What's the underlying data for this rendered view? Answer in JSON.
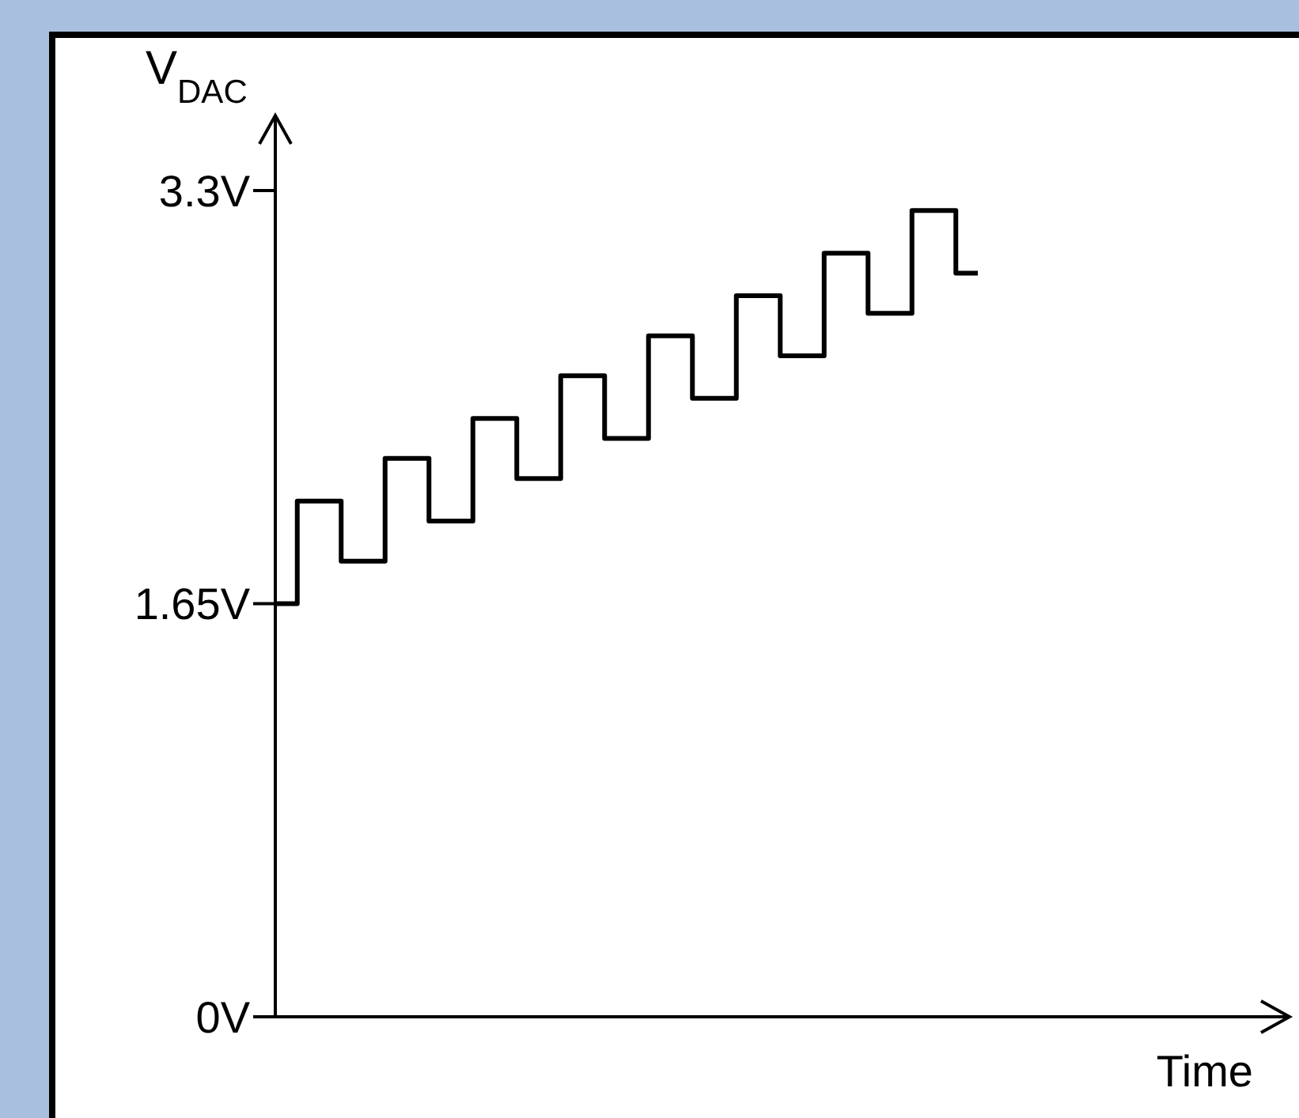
{
  "chart_data": {
    "type": "step",
    "xlabel": "Time",
    "ylabel": "V$_{DAC}$",
    "categories": [
      null,
      null,
      null,
      null,
      null,
      null,
      null,
      null,
      null,
      null,
      null,
      null,
      null,
      null,
      null,
      null,
      null
    ],
    "series": [
      {
        "color": "#000000",
        "values": [
          1.65,
          2.06,
          1.82,
          2.23,
          1.98,
          2.39,
          2.15,
          2.56,
          2.31,
          2.72,
          2.47,
          2.88,
          2.64,
          3.05,
          2.81,
          3.22,
          2.97
        ]
      }
    ],
    "ylim": [
      0,
      3.6
    ],
    "yticks": [
      {
        "value": 0,
        "label": "0V"
      },
      {
        "value": 1.65,
        "label": "1.65V"
      },
      {
        "value": 3.3,
        "label": "3.3V"
      }
    ],
    "tick_labels": "y",
    "grid": false,
    "legend": false,
    "marker": "none",
    "line_style": "solid"
  }
}
